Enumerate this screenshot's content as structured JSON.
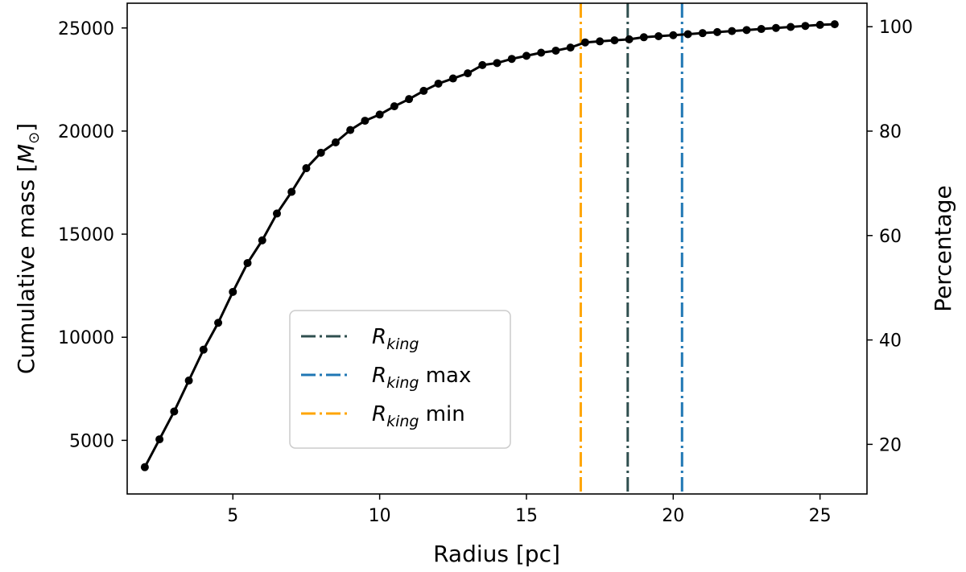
{
  "chart_data": {
    "type": "line",
    "xlabel": "Radius [pc]",
    "ylabel": "Cumulative mass [M☉]",
    "ylabel_right": "Percentage",
    "xlim": [
      1.4,
      26.6
    ],
    "ylim": [
      2400,
      26200
    ],
    "y2lim": [
      10.5,
      104.5
    ],
    "x_ticks": [
      5,
      10,
      15,
      20,
      25
    ],
    "y_ticks": [
      5000,
      10000,
      15000,
      20000,
      25000
    ],
    "y2_ticks": [
      20,
      40,
      60,
      80,
      100
    ],
    "grid": false,
    "legend_position": "lower-center",
    "series": [
      {
        "name": "",
        "color": "#000000",
        "marker": "circle",
        "x": [
          2.0,
          2.5,
          3.0,
          3.5,
          4.0,
          4.5,
          5.0,
          5.5,
          6.0,
          6.5,
          7.0,
          7.5,
          8.0,
          8.5,
          9.0,
          9.5,
          10.0,
          10.5,
          11.0,
          11.5,
          12.0,
          12.5,
          13.0,
          13.5,
          14.0,
          14.5,
          15.0,
          15.5,
          16.0,
          16.5,
          17.0,
          17.5,
          18.0,
          18.5,
          19.0,
          19.5,
          20.0,
          20.5,
          21.0,
          21.5,
          22.0,
          22.5,
          23.0,
          23.5,
          24.0,
          24.5,
          25.0,
          25.5
        ],
        "y": [
          3700,
          5050,
          6400,
          7900,
          9400,
          10700,
          12200,
          13600,
          14700,
          16000,
          17050,
          18200,
          18950,
          19450,
          20050,
          20500,
          20800,
          21200,
          21550,
          21950,
          22300,
          22550,
          22800,
          23200,
          23300,
          23500,
          23650,
          23800,
          23900,
          24050,
          24300,
          24350,
          24400,
          24450,
          24550,
          24600,
          24650,
          24700,
          24750,
          24800,
          24850,
          24900,
          24950,
          25000,
          25050,
          25100,
          25150,
          25180
        ]
      }
    ],
    "vlines": [
      {
        "name": "R_king",
        "label_main": "R",
        "label_sub": "king",
        "label_suffix": "",
        "x": 18.45,
        "color": "#2f4f4f",
        "style": "dashdot"
      },
      {
        "name": "R_king max",
        "label_main": "R",
        "label_sub": "king",
        "label_suffix": " max",
        "x": 20.3,
        "color": "#1f77b4",
        "style": "dashdot"
      },
      {
        "name": "R_king min",
        "label_main": "R",
        "label_sub": "king",
        "label_suffix": " min",
        "x": 16.85,
        "color": "#ffa500",
        "style": "dashdot"
      }
    ]
  }
}
